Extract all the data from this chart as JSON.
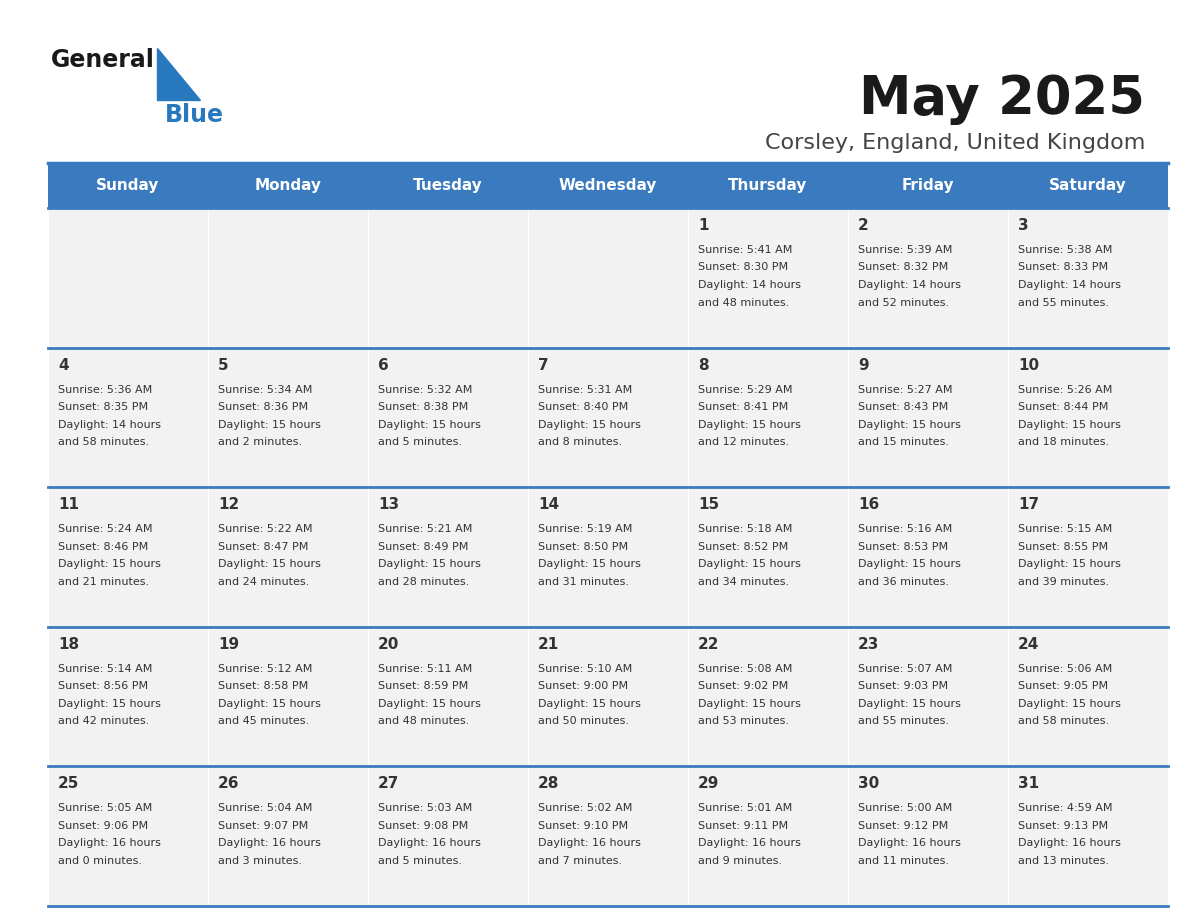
{
  "title": "May 2025",
  "subtitle": "Corsley, England, United Kingdom",
  "days_of_week": [
    "Sunday",
    "Monday",
    "Tuesday",
    "Wednesday",
    "Thursday",
    "Friday",
    "Saturday"
  ],
  "header_bg": "#3a7abf",
  "header_text_color": "#ffffff",
  "cell_bg": "#f2f2f2",
  "border_color": "#3a7abf",
  "text_color": "#333333",
  "title_color": "#1a1a1a",
  "subtitle_color": "#444444",
  "logo_general_color": "#1a1a1a",
  "logo_blue_color": "#2878be",
  "calendar_data": [
    [
      {
        "day": "",
        "sunrise": "",
        "sunset": "",
        "daylight": ""
      },
      {
        "day": "",
        "sunrise": "",
        "sunset": "",
        "daylight": ""
      },
      {
        "day": "",
        "sunrise": "",
        "sunset": "",
        "daylight": ""
      },
      {
        "day": "",
        "sunrise": "",
        "sunset": "",
        "daylight": ""
      },
      {
        "day": "1",
        "sunrise": "5:41 AM",
        "sunset": "8:30 PM",
        "daylight": "14 hours\nand 48 minutes."
      },
      {
        "day": "2",
        "sunrise": "5:39 AM",
        "sunset": "8:32 PM",
        "daylight": "14 hours\nand 52 minutes."
      },
      {
        "day": "3",
        "sunrise": "5:38 AM",
        "sunset": "8:33 PM",
        "daylight": "14 hours\nand 55 minutes."
      }
    ],
    [
      {
        "day": "4",
        "sunrise": "5:36 AM",
        "sunset": "8:35 PM",
        "daylight": "14 hours\nand 58 minutes."
      },
      {
        "day": "5",
        "sunrise": "5:34 AM",
        "sunset": "8:36 PM",
        "daylight": "15 hours\nand 2 minutes."
      },
      {
        "day": "6",
        "sunrise": "5:32 AM",
        "sunset": "8:38 PM",
        "daylight": "15 hours\nand 5 minutes."
      },
      {
        "day": "7",
        "sunrise": "5:31 AM",
        "sunset": "8:40 PM",
        "daylight": "15 hours\nand 8 minutes."
      },
      {
        "day": "8",
        "sunrise": "5:29 AM",
        "sunset": "8:41 PM",
        "daylight": "15 hours\nand 12 minutes."
      },
      {
        "day": "9",
        "sunrise": "5:27 AM",
        "sunset": "8:43 PM",
        "daylight": "15 hours\nand 15 minutes."
      },
      {
        "day": "10",
        "sunrise": "5:26 AM",
        "sunset": "8:44 PM",
        "daylight": "15 hours\nand 18 minutes."
      }
    ],
    [
      {
        "day": "11",
        "sunrise": "5:24 AM",
        "sunset": "8:46 PM",
        "daylight": "15 hours\nand 21 minutes."
      },
      {
        "day": "12",
        "sunrise": "5:22 AM",
        "sunset": "8:47 PM",
        "daylight": "15 hours\nand 24 minutes."
      },
      {
        "day": "13",
        "sunrise": "5:21 AM",
        "sunset": "8:49 PM",
        "daylight": "15 hours\nand 28 minutes."
      },
      {
        "day": "14",
        "sunrise": "5:19 AM",
        "sunset": "8:50 PM",
        "daylight": "15 hours\nand 31 minutes."
      },
      {
        "day": "15",
        "sunrise": "5:18 AM",
        "sunset": "8:52 PM",
        "daylight": "15 hours\nand 34 minutes."
      },
      {
        "day": "16",
        "sunrise": "5:16 AM",
        "sunset": "8:53 PM",
        "daylight": "15 hours\nand 36 minutes."
      },
      {
        "day": "17",
        "sunrise": "5:15 AM",
        "sunset": "8:55 PM",
        "daylight": "15 hours\nand 39 minutes."
      }
    ],
    [
      {
        "day": "18",
        "sunrise": "5:14 AM",
        "sunset": "8:56 PM",
        "daylight": "15 hours\nand 42 minutes."
      },
      {
        "day": "19",
        "sunrise": "5:12 AM",
        "sunset": "8:58 PM",
        "daylight": "15 hours\nand 45 minutes."
      },
      {
        "day": "20",
        "sunrise": "5:11 AM",
        "sunset": "8:59 PM",
        "daylight": "15 hours\nand 48 minutes."
      },
      {
        "day": "21",
        "sunrise": "5:10 AM",
        "sunset": "9:00 PM",
        "daylight": "15 hours\nand 50 minutes."
      },
      {
        "day": "22",
        "sunrise": "5:08 AM",
        "sunset": "9:02 PM",
        "daylight": "15 hours\nand 53 minutes."
      },
      {
        "day": "23",
        "sunrise": "5:07 AM",
        "sunset": "9:03 PM",
        "daylight": "15 hours\nand 55 minutes."
      },
      {
        "day": "24",
        "sunrise": "5:06 AM",
        "sunset": "9:05 PM",
        "daylight": "15 hours\nand 58 minutes."
      }
    ],
    [
      {
        "day": "25",
        "sunrise": "5:05 AM",
        "sunset": "9:06 PM",
        "daylight": "16 hours\nand 0 minutes."
      },
      {
        "day": "26",
        "sunrise": "5:04 AM",
        "sunset": "9:07 PM",
        "daylight": "16 hours\nand 3 minutes."
      },
      {
        "day": "27",
        "sunrise": "5:03 AM",
        "sunset": "9:08 PM",
        "daylight": "16 hours\nand 5 minutes."
      },
      {
        "day": "28",
        "sunrise": "5:02 AM",
        "sunset": "9:10 PM",
        "daylight": "16 hours\nand 7 minutes."
      },
      {
        "day": "29",
        "sunrise": "5:01 AM",
        "sunset": "9:11 PM",
        "daylight": "16 hours\nand 9 minutes."
      },
      {
        "day": "30",
        "sunrise": "5:00 AM",
        "sunset": "9:12 PM",
        "daylight": "16 hours\nand 11 minutes."
      },
      {
        "day": "31",
        "sunrise": "4:59 AM",
        "sunset": "9:13 PM",
        "daylight": "16 hours\nand 13 minutes."
      }
    ]
  ]
}
